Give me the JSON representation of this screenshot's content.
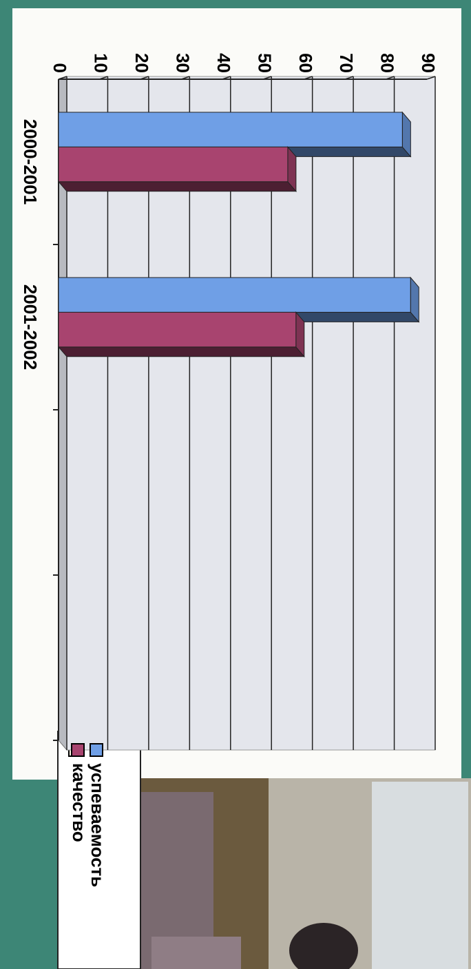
{
  "chart_data": {
    "type": "bar",
    "categories": [
      "2000-2001",
      "2001-2002",
      null,
      null
    ],
    "series": [
      {
        "name": "успеваемость",
        "color": "#6f9fe6",
        "values": [
          84,
          86,
          null,
          null
        ]
      },
      {
        "name": "качество",
        "color": "#a8446f",
        "values": [
          56,
          58,
          null,
          null
        ]
      }
    ],
    "ylim": [
      0,
      90
    ],
    "yticks": [
      0,
      10,
      20,
      30,
      40,
      50,
      60,
      70,
      80,
      90
    ],
    "grid": true
  }
}
